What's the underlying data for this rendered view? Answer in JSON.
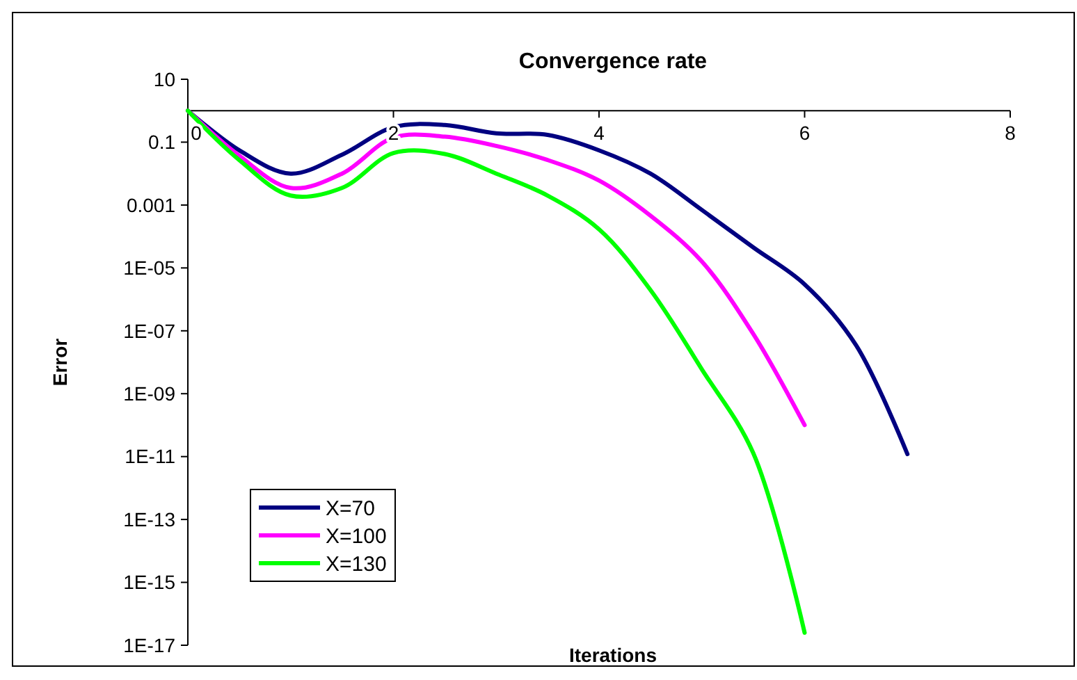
{
  "chart_data": {
    "type": "line",
    "title": "Convergence rate",
    "xlabel": "Iterations",
    "ylabel": "Error",
    "log": "y",
    "grid": false,
    "legend": "left",
    "marker": "none",
    "line_style": "solid",
    "xlim": [
      0,
      8
    ],
    "xticks": [
      0,
      2,
      4,
      6,
      8
    ],
    "ylim": [
      1e-17,
      10
    ],
    "yticks": [
      10,
      0.1,
      0.001,
      {
        "value": 1e-05,
        "label": "1E-05"
      },
      {
        "value": 1e-07,
        "label": "1E-07"
      },
      {
        "value": 1e-09,
        "label": "1E-09"
      },
      {
        "value": 1e-11,
        "label": "1E-11"
      },
      {
        "value": 1e-13,
        "label": "1E-13"
      },
      {
        "value": 1e-15,
        "label": "1E-15"
      },
      {
        "value": 1e-17,
        "label": "1E-17"
      }
    ],
    "series": [
      {
        "name": "X=70",
        "color": "#000080",
        "x": [
          0,
          0.5,
          1,
          1.5,
          2,
          2.5,
          3,
          3.5,
          4,
          4.5,
          5,
          5.5,
          6,
          6.5,
          7
        ],
        "values": [
          1,
          0.055,
          0.01,
          0.04,
          0.3,
          0.35,
          0.19,
          0.17,
          0.055,
          0.01,
          0.0007,
          4.5e-05,
          3e-06,
          3.5e-08,
          1.2e-11
        ]
      },
      {
        "name": "X=100",
        "color": "#ff00ff",
        "x": [
          0,
          0.5,
          1,
          1.5,
          2,
          2.5,
          3,
          3.5,
          4,
          4.5,
          5,
          5.5,
          6
        ],
        "values": [
          1,
          0.037,
          0.0035,
          0.01,
          0.14,
          0.15,
          0.076,
          0.027,
          0.006,
          0.00046,
          1.6e-05,
          8e-08,
          1e-10
        ]
      },
      {
        "name": "X=130",
        "color": "#00ff00",
        "x": [
          0,
          0.5,
          1,
          1.5,
          2,
          2.5,
          3,
          3.5,
          4,
          4.5,
          5,
          5.5,
          6
        ],
        "values": [
          1,
          0.027,
          0.002,
          0.0035,
          0.045,
          0.042,
          0.01,
          0.002,
          0.00017,
          2e-06,
          6e-09,
          1.3e-11,
          2.5e-17
        ]
      }
    ]
  }
}
